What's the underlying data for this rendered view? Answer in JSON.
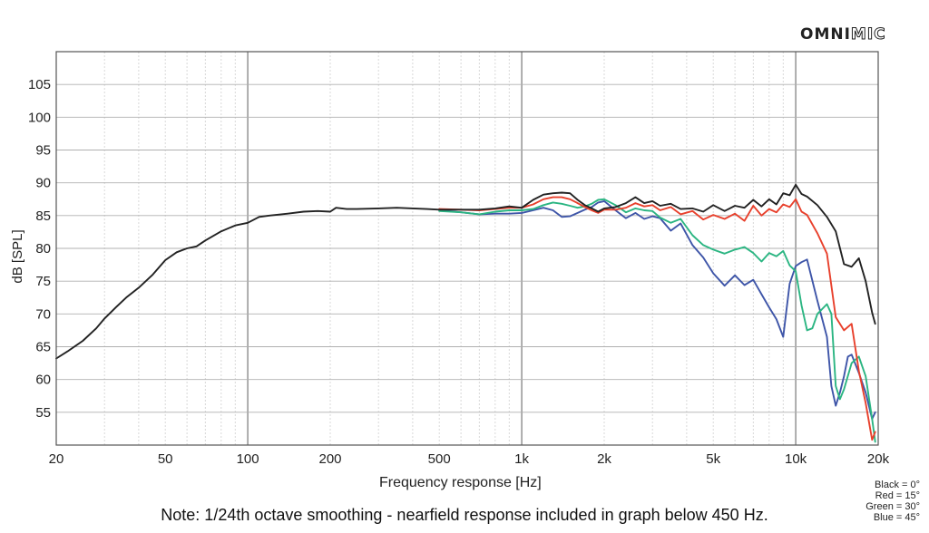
{
  "logo": {
    "part1": "OMNI",
    "part2": "MIC"
  },
  "note": "Note: 1/24th octave smoothing - nearfield response included in graph below 450 Hz.",
  "legend": [
    "Black = 0°",
    "Red = 15°",
    "Green = 30°",
    "Blue = 45°"
  ],
  "chart_data": {
    "type": "line",
    "title": "",
    "xlabel": "Frequency response [Hz]",
    "ylabel": "dB [SPL]",
    "x_scale": "log",
    "xlim": [
      20,
      20000
    ],
    "ylim": [
      50,
      110
    ],
    "grid": true,
    "x_ticks": [
      {
        "value": 20,
        "label": "20"
      },
      {
        "value": 50,
        "label": "50"
      },
      {
        "value": 100,
        "label": "100"
      },
      {
        "value": 200,
        "label": "200"
      },
      {
        "value": 500,
        "label": "500"
      },
      {
        "value": 1000,
        "label": "1k"
      },
      {
        "value": 2000,
        "label": "2k"
      },
      {
        "value": 5000,
        "label": "5k"
      },
      {
        "value": 10000,
        "label": "10k"
      },
      {
        "value": 20000,
        "label": "20k"
      }
    ],
    "y_ticks": [
      55,
      60,
      65,
      70,
      75,
      80,
      85,
      90,
      95,
      100,
      105
    ],
    "series": [
      {
        "name": "Black = 0°",
        "color": "#222222",
        "x": [
          20,
          22,
          25,
          28,
          30,
          33,
          36,
          40,
          45,
          50,
          55,
          60,
          65,
          70,
          80,
          90,
          100,
          110,
          120,
          140,
          160,
          180,
          200,
          210,
          230,
          250,
          300,
          350,
          400,
          450,
          500,
          600,
          700,
          800,
          900,
          1000,
          1100,
          1200,
          1300,
          1400,
          1500,
          1600,
          1700,
          1800,
          1900,
          2000,
          2200,
          2400,
          2600,
          2800,
          3000,
          3200,
          3500,
          3800,
          4200,
          4600,
          5000,
          5500,
          6000,
          6500,
          7000,
          7500,
          8000,
          8500,
          9000,
          9500,
          10000,
          10500,
          11000,
          12000,
          13000,
          14000,
          15000,
          16000,
          17000,
          18000,
          19000,
          19500
        ],
        "y": [
          63.2,
          64.3,
          65.9,
          67.8,
          69.3,
          71,
          72.5,
          74,
          76,
          78.2,
          79.4,
          80,
          80.3,
          81.2,
          82.6,
          83.5,
          83.9,
          84.8,
          85,
          85.3,
          85.6,
          85.7,
          85.6,
          86.2,
          86,
          86,
          86.1,
          86.2,
          86.1,
          86,
          85.9,
          85.9,
          85.9,
          86.1,
          86.4,
          86.2,
          87.4,
          88.2,
          88.4,
          88.5,
          88.4,
          87.4,
          86.6,
          86.1,
          85.6,
          86.1,
          86.3,
          86.9,
          87.8,
          86.9,
          87.2,
          86.5,
          86.8,
          86,
          86.1,
          85.6,
          86.6,
          85.7,
          86.5,
          86.2,
          87.4,
          86.4,
          87.5,
          86.7,
          88.4,
          88.1,
          89.7,
          88.3,
          87.9,
          86.6,
          84.8,
          82.6,
          77.6,
          77.2,
          78.5,
          75,
          70.2,
          68.5
        ]
      },
      {
        "name": "Red = 15°",
        "color": "#e8402c",
        "x": [
          500,
          600,
          700,
          800,
          900,
          1000,
          1100,
          1200,
          1300,
          1400,
          1500,
          1600,
          1700,
          1800,
          1900,
          2000,
          2200,
          2400,
          2600,
          2800,
          3000,
          3200,
          3500,
          3800,
          4200,
          4600,
          5000,
          5500,
          6000,
          6500,
          7000,
          7500,
          8000,
          8500,
          9000,
          9500,
          10000,
          10500,
          11000,
          12000,
          13000,
          14000,
          15000,
          16000,
          17000,
          18000,
          19000,
          19500
        ],
        "y": [
          86,
          85.9,
          85.8,
          86,
          86.2,
          86.2,
          86.7,
          87.5,
          87.8,
          87.8,
          87.5,
          86.9,
          86.3,
          85.8,
          85.4,
          85.9,
          85.9,
          86.2,
          86.9,
          86.4,
          86.6,
          85.8,
          86.3,
          85.2,
          85.7,
          84.4,
          85.1,
          84.5,
          85.3,
          84.2,
          86.5,
          85,
          86,
          85.5,
          86.7,
          86.3,
          87.5,
          85.6,
          85.1,
          82.3,
          79.2,
          69.5,
          67.5,
          68.5,
          61.3,
          56.4,
          50.8,
          52
        ]
      },
      {
        "name": "Green = 30°",
        "color": "#2bb582",
        "x": [
          500,
          600,
          700,
          800,
          900,
          1000,
          1100,
          1200,
          1300,
          1400,
          1500,
          1600,
          1700,
          1800,
          1900,
          2000,
          2200,
          2400,
          2600,
          2800,
          3000,
          3200,
          3500,
          3800,
          4200,
          4600,
          5000,
          5500,
          6000,
          6500,
          7000,
          7500,
          8000,
          8500,
          9000,
          9500,
          10000,
          10500,
          11000,
          11500,
          12000,
          13000,
          13500,
          14000,
          14500,
          15000,
          16000,
          17000,
          18000,
          19000,
          19500
        ],
        "y": [
          85.7,
          85.5,
          85.2,
          85.6,
          85.8,
          85.8,
          86,
          86.6,
          87,
          86.8,
          86.5,
          86.2,
          86.4,
          86.8,
          87.4,
          87.5,
          86.6,
          85.5,
          86.1,
          85.8,
          85.7,
          84.7,
          83.9,
          84.5,
          82,
          80.5,
          79.8,
          79.2,
          79.8,
          80.2,
          79.3,
          78,
          79.3,
          78.8,
          79.6,
          77.4,
          76.5,
          71.3,
          67.5,
          67.8,
          70,
          71.5,
          70,
          59,
          57,
          58.5,
          62.5,
          63.5,
          60.5,
          54,
          50.5
        ]
      },
      {
        "name": "Blue = 45°",
        "color": "#3e55a8",
        "x": [
          500,
          600,
          700,
          800,
          900,
          1000,
          1100,
          1200,
          1300,
          1400,
          1500,
          1600,
          1700,
          1800,
          1900,
          2000,
          2200,
          2400,
          2600,
          2800,
          3000,
          3200,
          3500,
          3800,
          4200,
          4600,
          5000,
          5500,
          6000,
          6500,
          7000,
          7500,
          8000,
          8500,
          9000,
          9500,
          10000,
          10500,
          11000,
          12000,
          13000,
          13500,
          14000,
          14500,
          15000,
          15500,
          16000,
          17000,
          18000,
          19000,
          19500
        ],
        "y": [
          85.8,
          85.5,
          85.2,
          85.3,
          85.3,
          85.4,
          85.8,
          86.2,
          85.8,
          84.8,
          84.9,
          85.4,
          85.9,
          86.3,
          87,
          87.2,
          85.8,
          84.6,
          85.4,
          84.5,
          84.9,
          84.6,
          82.7,
          83.8,
          80.5,
          78.6,
          76.2,
          74.3,
          75.9,
          74.4,
          75.2,
          73,
          71,
          69.2,
          66.5,
          74.6,
          77.3,
          77.9,
          78.3,
          72,
          66.5,
          59,
          56,
          58,
          60.5,
          63.5,
          63.8,
          61,
          58,
          54,
          55
        ]
      }
    ]
  }
}
